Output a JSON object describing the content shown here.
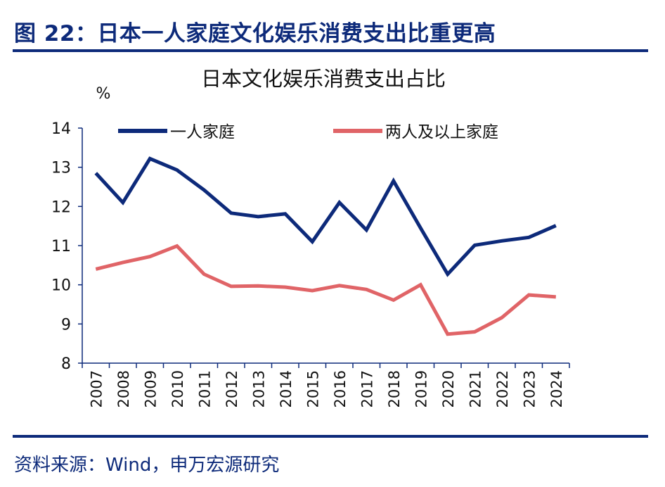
{
  "figure": {
    "title": "图 22：日本一人家庭文化娱乐消费支出比重更高",
    "source": "资料来源：Wind，申万宏源研究"
  },
  "chart_data": {
    "type": "line",
    "title": "日本文化娱乐消费支出占比",
    "ylabel": "%",
    "xlabel": "",
    "ylim": [
      8,
      14
    ],
    "yticks": [
      8,
      9,
      10,
      11,
      12,
      13,
      14
    ],
    "categories": [
      "2007",
      "2008",
      "2009",
      "2010",
      "2011",
      "2012",
      "2013",
      "2014",
      "2015",
      "2016",
      "2017",
      "2018",
      "2019",
      "2020",
      "2021",
      "2022",
      "2023",
      "2024"
    ],
    "series": [
      {
        "name": "一人家庭",
        "color": "#0d2a7a",
        "values": [
          12.85,
          12.1,
          13.22,
          12.93,
          12.42,
          11.83,
          11.74,
          11.81,
          11.1,
          12.1,
          11.4,
          12.65,
          11.45,
          10.27,
          11.01,
          11.12,
          11.21,
          11.51
        ]
      },
      {
        "name": "两人及以上家庭",
        "color": "#e06467",
        "values": [
          10.4,
          10.57,
          10.72,
          10.99,
          10.27,
          9.96,
          9.97,
          9.94,
          9.85,
          9.98,
          9.88,
          9.61,
          10.0,
          8.74,
          8.8,
          9.16,
          9.74,
          9.69
        ]
      }
    ],
    "legend_position": "top",
    "grid": false
  }
}
